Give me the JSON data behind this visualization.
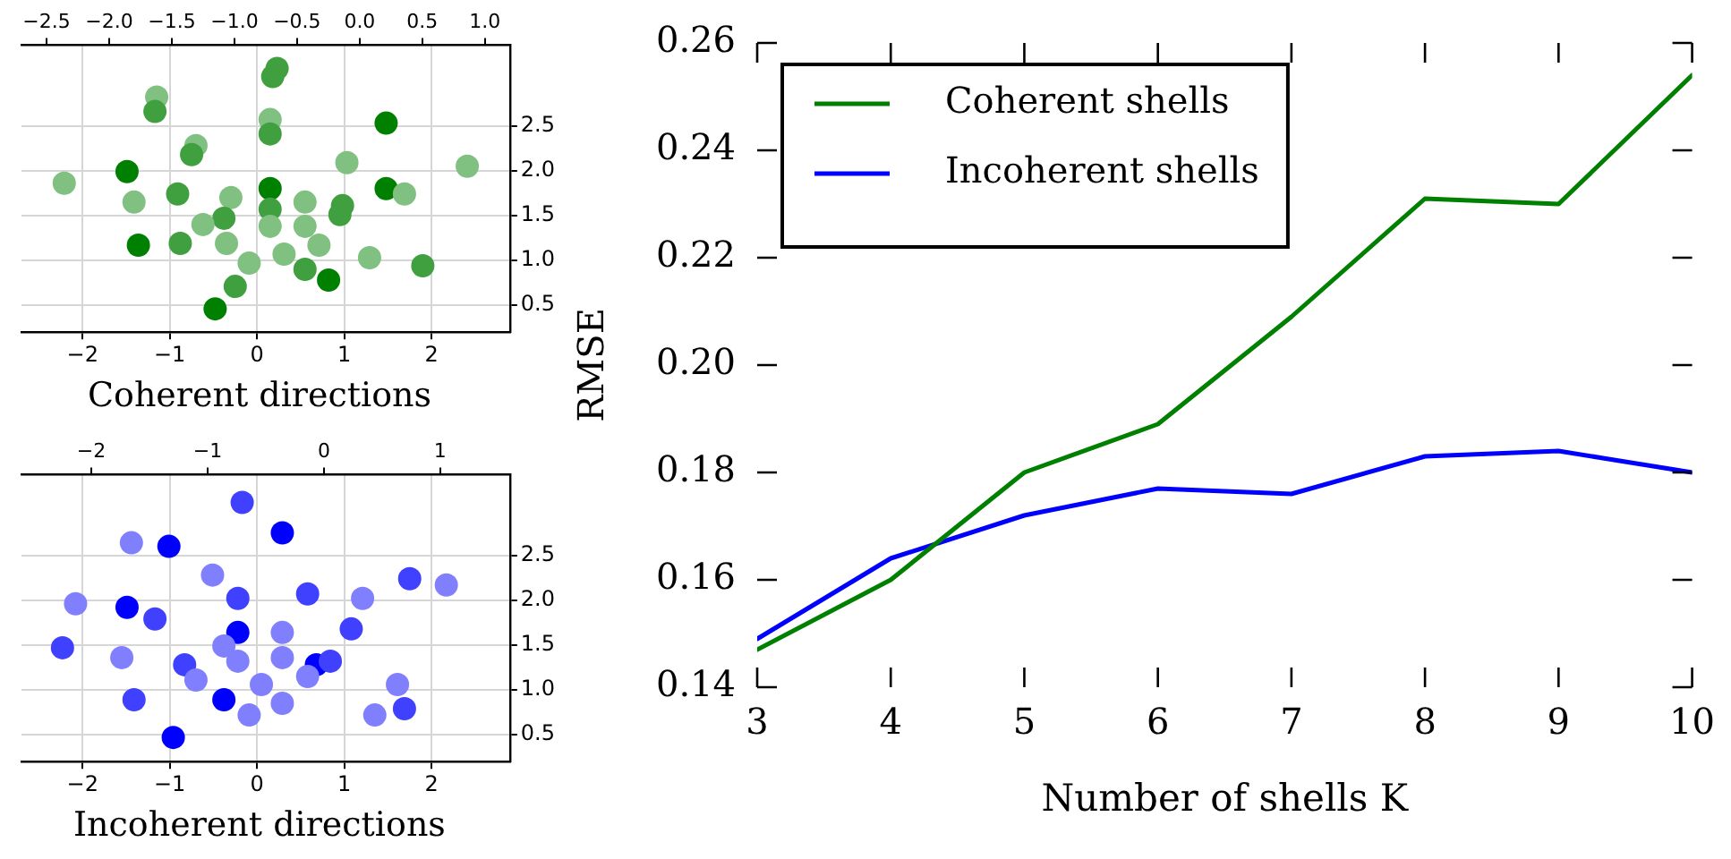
{
  "chart_data": [
    {
      "type": "scatter",
      "xlabel": "Coherent directions",
      "marker": "circle",
      "grid": true,
      "x": [
        0.23,
        0.18,
        -1.15,
        -1.17,
        1.48,
        0.15,
        0.15,
        -0.7,
        -0.75,
        1.03,
        2.41,
        -2.21,
        -1.49,
        0.15,
        1.48,
        1.69,
        -1.41,
        -0.91,
        -0.3,
        0.55,
        0.98,
        0.95,
        0.15,
        -0.38,
        -0.62,
        0.15,
        0.55,
        -1.36,
        -0.88,
        -0.35,
        0.31,
        0.71,
        1.29,
        1.9,
        -0.09,
        0.55,
        0.82,
        -0.25,
        -0.48
      ],
      "values": [
        3.14,
        3.05,
        2.82,
        2.66,
        2.53,
        2.57,
        2.41,
        2.28,
        2.18,
        2.09,
        2.05,
        1.86,
        1.99,
        1.8,
        1.8,
        1.74,
        1.65,
        1.74,
        1.7,
        1.65,
        1.61,
        1.51,
        1.57,
        1.47,
        1.4,
        1.38,
        1.38,
        1.17,
        1.19,
        1.19,
        1.07,
        1.17,
        1.03,
        0.94,
        0.97,
        0.9,
        0.78,
        0.71,
        0.46
      ],
      "colors": [
        "#40a040",
        "#40a040",
        "#80c080",
        "#40a040",
        "#008000",
        "#80c080",
        "#40a040",
        "#80c080",
        "#40a040",
        "#80c080",
        "#80c080",
        "#80c080",
        "#008000",
        "#008000",
        "#008000",
        "#80c080",
        "#80c080",
        "#40a040",
        "#80c080",
        "#80c080",
        "#40a040",
        "#40a040",
        "#40a040",
        "#40a040",
        "#80c080",
        "#80c080",
        "#80c080",
        "#008000",
        "#40a040",
        "#80c080",
        "#80c080",
        "#80c080",
        "#80c080",
        "#40a040",
        "#80c080",
        "#40a040",
        "#008000",
        "#40a040",
        "#008000"
      ],
      "xlim": [
        -2.7,
        2.9
      ],
      "xticks": [
        -2,
        -1,
        0,
        1,
        2
      ],
      "ylim": [
        0.2,
        3.4
      ],
      "yticks": [
        0.5,
        {
          "value": 1,
          "label": "1.0"
        },
        1.5,
        {
          "value": 2,
          "label": "2.0"
        },
        2.5
      ],
      "x2lim": [
        -2.7,
        1.2
      ],
      "x2ticks": [
        {
          "value": -2.5,
          "label": "−2.5"
        },
        {
          "value": -2,
          "label": "−2.0"
        },
        {
          "value": -1.5,
          "label": "−1.5"
        },
        {
          "value": -1,
          "label": "−1.0"
        },
        {
          "value": -0.5,
          "label": "−0.5"
        },
        {
          "value": 0,
          "label": "0.0"
        },
        0.5,
        {
          "value": 1,
          "label": "1.0"
        }
      ]
    },
    {
      "type": "line",
      "xlabel": "Number of shells K",
      "ylabel": "RMSE",
      "x": [
        3,
        4,
        5,
        6,
        7,
        8,
        9,
        10
      ],
      "series": [
        {
          "name": "Coherent shells",
          "color": "#008000",
          "values": [
            0.147,
            0.16,
            0.18,
            0.189,
            0.209,
            0.231,
            0.23,
            0.254
          ]
        },
        {
          "name": "Incoherent shells",
          "color": "#0000ff",
          "values": [
            0.149,
            0.164,
            0.172,
            0.177,
            0.176,
            0.183,
            0.184,
            0.18
          ]
        }
      ],
      "xlim": [
        3,
        10
      ],
      "xticks": [
        3,
        4,
        5,
        6,
        7,
        8,
        9,
        10
      ],
      "ylim": [
        0.14,
        0.26
      ],
      "yticks": [
        0.14,
        0.16,
        0.18,
        {
          "value": 0.2,
          "label": "0.20"
        },
        0.22,
        0.24,
        0.26
      ],
      "legend": "top left"
    },
    {
      "type": "scatter",
      "xlabel": "Incoherent directions",
      "marker": "circle",
      "grid": true,
      "x": [
        -0.17,
        0.29,
        -1.44,
        -1.01,
        -0.51,
        1.75,
        2.17,
        0.58,
        1.21,
        -0.22,
        -2.08,
        -1.49,
        -1.17,
        1.08,
        -0.22,
        0.29,
        -2.23,
        -1.55,
        -0.83,
        -0.38,
        -0.22,
        0.29,
        0.68,
        0.84,
        -0.7,
        0.05,
        0.58,
        -0.38,
        0.29,
        -1.41,
        1.61,
        1.35,
        1.69,
        -0.09,
        -0.96
      ],
      "values": [
        3.09,
        2.75,
        2.64,
        2.6,
        2.28,
        2.24,
        2.17,
        2.07,
        2.02,
        2.02,
        1.96,
        1.92,
        1.79,
        1.68,
        1.64,
        1.64,
        1.47,
        1.36,
        1.28,
        1.49,
        1.32,
        1.36,
        1.28,
        1.32,
        1.11,
        1.06,
        1.15,
        0.89,
        0.85,
        0.89,
        1.06,
        0.72,
        0.79,
        0.72,
        0.47
      ],
      "colors": [
        "#4040ff",
        "#0000ff",
        "#8080ff",
        "#0000ff",
        "#8080ff",
        "#4040ff",
        "#8080ff",
        "#4040ff",
        "#8080ff",
        "#4040ff",
        "#8080ff",
        "#0000ff",
        "#4040ff",
        "#4040ff",
        "#0000ff",
        "#8080ff",
        "#4040ff",
        "#8080ff",
        "#4040ff",
        "#8080ff",
        "#8080ff",
        "#8080ff",
        "#0000ff",
        "#4040ff",
        "#8080ff",
        "#8080ff",
        "#8080ff",
        "#0000ff",
        "#8080ff",
        "#4040ff",
        "#8080ff",
        "#8080ff",
        "#4040ff",
        "#8080ff",
        "#0000ff"
      ],
      "xlim": [
        -2.7,
        2.9
      ],
      "xticks": [
        -2,
        -1,
        0,
        1,
        2
      ],
      "ylim": [
        0.2,
        3.4
      ],
      "yticks": [
        0.5,
        {
          "value": 1,
          "label": "1.0"
        },
        1.5,
        {
          "value": 2,
          "label": "2.0"
        },
        2.5
      ],
      "x2lim": [
        -2.6,
        1.6
      ],
      "x2ticks": [
        -2,
        -1,
        0,
        1
      ]
    }
  ]
}
